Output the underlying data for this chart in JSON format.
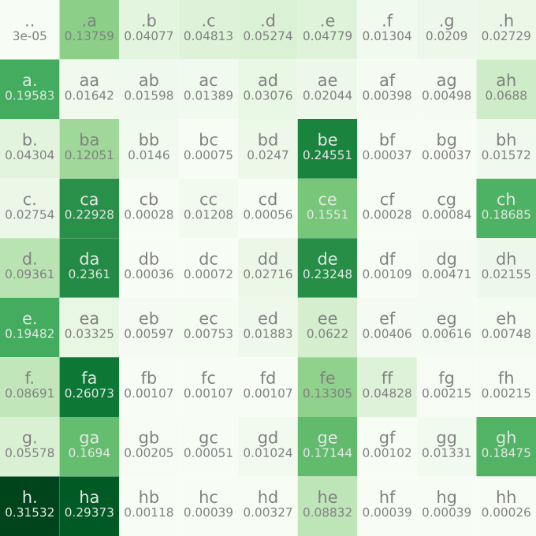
{
  "chart_data": {
    "type": "heatmap",
    "categories": [
      null,
      null,
      null,
      null,
      null,
      null,
      null,
      null,
      null
    ],
    "y_categories": [
      null,
      null,
      null,
      null,
      null,
      null,
      null,
      null,
      null
    ],
    "cells": [
      [
        3e-05,
        0.13759,
        0.04077,
        0.04813,
        0.05274,
        0.04779,
        0.01304,
        0.0209,
        0.02729
      ],
      [
        0.19583,
        0.01642,
        0.01598,
        0.01389,
        0.03076,
        0.02044,
        0.00398,
        0.00498,
        0.0688
      ],
      [
        0.04304,
        0.12051,
        0.0146,
        0.00075,
        0.0247,
        0.24551,
        0.00037,
        0.00037,
        0.01572
      ],
      [
        0.02754,
        0.22928,
        0.00028,
        0.01208,
        0.00056,
        0.1551,
        0.00028,
        0.00084,
        0.18685
      ],
      [
        0.09361,
        0.2361,
        0.00036,
        0.00072,
        0.02716,
        0.23248,
        0.00109,
        0.00471,
        0.02155
      ],
      [
        0.19482,
        0.03325,
        0.00597,
        0.00753,
        0.01883,
        0.0622,
        0.00406,
        0.00616,
        0.00748
      ],
      [
        0.08691,
        0.26073,
        0.00107,
        0.00107,
        0.00107,
        0.13305,
        0.04828,
        0.00215,
        0.00215
      ],
      [
        0.05578,
        0.1694,
        0.00205,
        0.00051,
        0.01024,
        0.17144,
        0.00102,
        0.01331,
        0.18475
      ],
      [
        0.31532,
        0.29373,
        0.00118,
        0.00039,
        0.00327,
        0.08832,
        0.00039,
        0.00039,
        0.00026
      ]
    ],
    "annotations": [
      "..",
      ".a",
      ".b",
      ".c",
      ".d",
      ".e",
      ".f",
      ".g",
      ".h",
      "a.",
      "aa",
      "ab",
      "ac",
      "ad",
      "ae",
      "af",
      "ag",
      "ah",
      "b.",
      "ba",
      "bb",
      "bc",
      "bd",
      "be",
      "bf",
      "bg",
      "bh",
      "c.",
      "ca",
      "cb",
      "cc",
      "cd",
      "ce",
      "cf",
      "cg",
      "ch",
      "d.",
      "da",
      "db",
      "dc",
      "dd",
      "de",
      "df",
      "dg",
      "dh",
      "e.",
      "ea",
      "eb",
      "ec",
      "ed",
      "ee",
      "ef",
      "eg",
      "eh",
      "f.",
      "fa",
      "fb",
      "fc",
      "fd",
      "fe",
      "ff",
      "fg",
      "fh",
      "g.",
      "ga",
      "gb",
      "gc",
      "gd",
      "ge",
      "gf",
      "gg",
      "gh",
      "h.",
      "ha",
      "hb",
      "hc",
      "hd",
      "he",
      "hf",
      "hg",
      "hh"
    ],
    "data_labels": true
  }
}
